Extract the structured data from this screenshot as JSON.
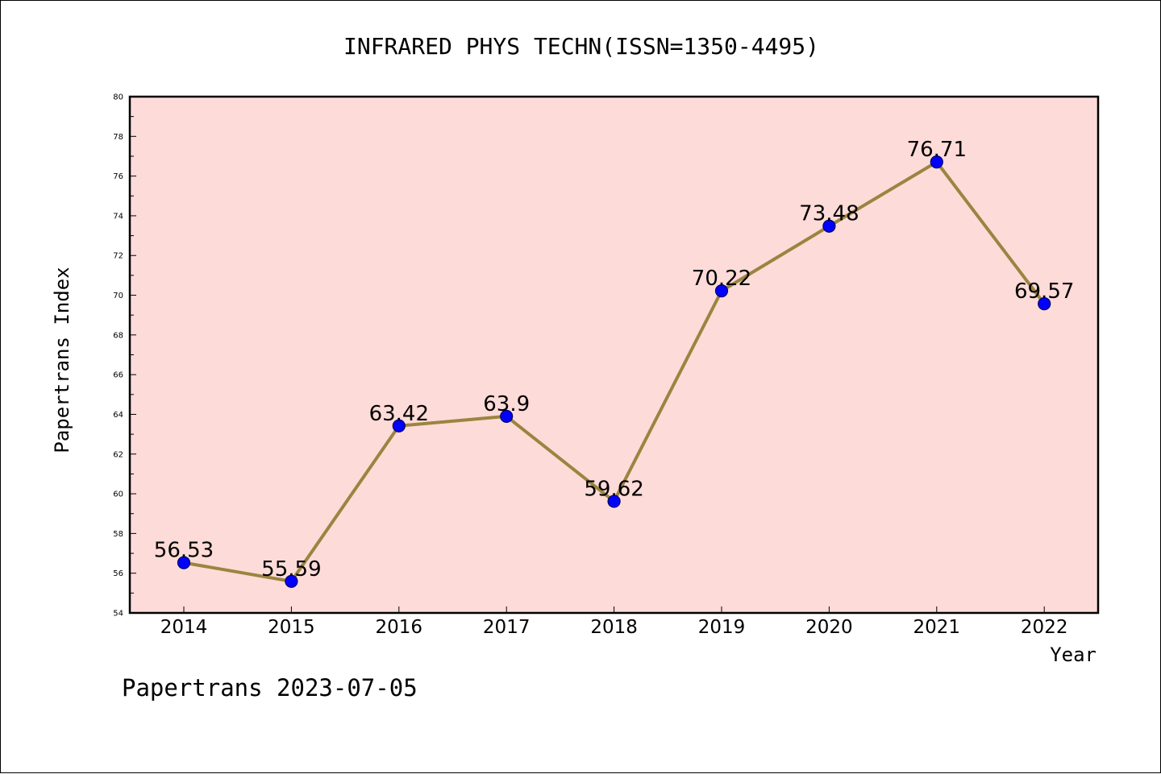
{
  "chart_data": {
    "type": "line",
    "title": "INFRARED PHYS TECHN(ISSN=1350-4495)",
    "xlabel": "Year",
    "ylabel": "Papertrans Index",
    "categories": [
      "2014",
      "2015",
      "2016",
      "2017",
      "2018",
      "2019",
      "2020",
      "2021",
      "2022"
    ],
    "series": [
      {
        "values": [
          56.53,
          55.59,
          63.42,
          63.9,
          59.62,
          70.22,
          73.48,
          76.71,
          69.57
        ],
        "data_labels": [
          "56.53",
          "55.59",
          "63.42",
          "63.9",
          "59.62",
          "70.22",
          "73.48",
          "76.71",
          "69.57"
        ]
      }
    ],
    "ylim": [
      54,
      80
    ],
    "y_ticks": [
      54,
      56,
      58,
      60,
      62,
      64,
      66,
      68,
      70,
      72,
      74,
      76,
      78,
      80
    ],
    "grid": false,
    "legend": "none",
    "colors": {
      "plot_background": "#fddbd8",
      "line": "#9b8440",
      "marker_fill": "#0000ff",
      "marker_stroke": "#000066",
      "axes": "#000000"
    }
  },
  "footer": {
    "watermark": "Papertrans 2023-07-05"
  }
}
